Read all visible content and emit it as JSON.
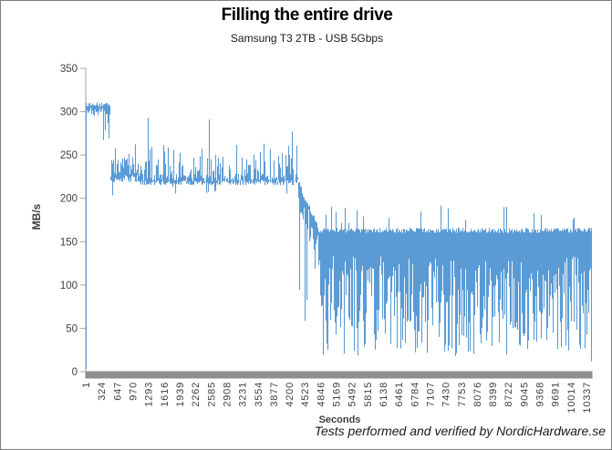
{
  "header": {
    "title": "Filling the entire drive",
    "subtitle": "Samsung T3 2TB - USB 5Gbps"
  },
  "footer": {
    "credit": "Tests performed and verified by NordicHardware.se"
  },
  "chart_data": {
    "type": "line",
    "title": "Filling the entire drive",
    "subtitle": "Samsung T3 2TB - USB 5Gbps",
    "xlabel": "Seconds",
    "ylabel": "MB/s",
    "ylim": [
      0,
      350
    ],
    "ytick_step": 50,
    "yticks": [
      0,
      50,
      100,
      150,
      200,
      250,
      300,
      350
    ],
    "xticks": [
      1,
      324,
      647,
      970,
      1293,
      1616,
      1939,
      2262,
      2585,
      2908,
      3231,
      3554,
      3877,
      4200,
      4523,
      4846,
      5169,
      5492,
      5815,
      6138,
      6461,
      6784,
      7107,
      7430,
      7753,
      8076,
      8399,
      8722,
      9045,
      9368,
      9691,
      10014,
      10337
    ],
    "x_max": 10450,
    "grid": false,
    "legend": "none",
    "colors": {
      "series": "#5B9BD5",
      "axis": "#A6A6A6",
      "axis_band": "#8E8E8E",
      "tick_label": "#404040"
    },
    "phases": [
      {
        "seconds": "1-500",
        "speed_mbs": "~305 plateau (300-310), brief dips to ~270"
      },
      {
        "seconds": "500-1100",
        "speed_mbs": "~225-250 noisy band, spikes to ~268"
      },
      {
        "seconds": "1100-4370",
        "speed_mbs": "~220 baseline with spikes 230-295"
      },
      {
        "seconds": "4370-4800",
        "speed_mbs": "staircase decline 220 -> 165"
      },
      {
        "seconds": "4800-10450",
        "speed_mbs": "~165 ceiling, dense dips 20-130"
      }
    ],
    "segments": [
      {
        "s0": 0,
        "s1": 500,
        "hi": 308,
        "hi_jitter": 3,
        "lo": 300,
        "lo_jitter": 5,
        "spike_chance": 0,
        "dip_chance": 0.1,
        "dip_min": 268,
        "dip_max": 292
      },
      {
        "s0": 500,
        "s1": 1100,
        "hi": 236,
        "hi_jitter": 12,
        "lo": 223,
        "lo_jitter": 4,
        "spike_chance": 0.3,
        "spike_min": 245,
        "spike_max": 267,
        "dip_chance": 0.1,
        "dip_min": 198,
        "dip_max": 215
      },
      {
        "s0": 1100,
        "s1": 4370,
        "hi": 224,
        "hi_jitter": 5,
        "lo": 218,
        "lo_jitter": 3,
        "spike_chance": 0.42,
        "spike_min": 230,
        "spike_max": 262,
        "dip_chance": 0.04,
        "dip_min": 205,
        "dip_max": 214
      },
      {
        "s0": 4370,
        "s1": 4800,
        "hi_from": 221,
        "hi_to": 166,
        "hi_jitter": 4,
        "lo_from": 210,
        "lo_to": 138,
        "lo_jitter": 22,
        "spike_chance": 0,
        "dip_chance": 0.12,
        "dip_min": 55,
        "dip_max": 130
      },
      {
        "s0": 4800,
        "s1": 10450,
        "hi": 163,
        "hi_jitter": 3,
        "lo": 95,
        "lo_jitter": 38,
        "spike_chance": 0.05,
        "spike_min": 170,
        "spike_max": 192,
        "dip_chance": 0.28,
        "dip_min": 18,
        "dip_max": 60
      }
    ],
    "events": [
      {
        "s": 2,
        "lo": 3
      },
      {
        "s": 360,
        "lo": 267
      },
      {
        "s": 1284,
        "hi": 293
      },
      {
        "s": 2538,
        "hi": 291
      },
      {
        "s": 3666,
        "hi": 263
      },
      {
        "s": 4262,
        "hi": 277
      },
      {
        "s": 8620,
        "hi": 190
      },
      {
        "s": 9240,
        "hi": 183
      },
      {
        "s": 10440,
        "lo": 12
      }
    ],
    "seed": 20160421
  }
}
